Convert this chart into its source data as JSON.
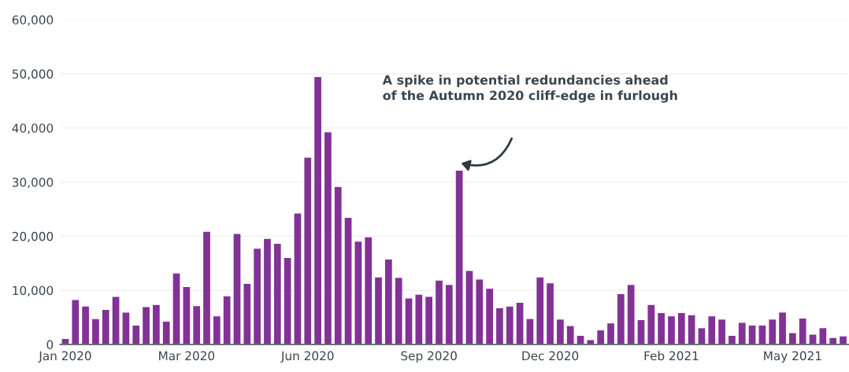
{
  "chart_data": {
    "type": "bar",
    "categories": [
      "Jan 2020",
      null,
      null,
      null,
      null,
      null,
      null,
      null,
      null,
      null,
      null,
      null,
      "Mar 2020",
      null,
      null,
      null,
      null,
      null,
      null,
      null,
      null,
      null,
      null,
      null,
      "Jun 2020",
      null,
      null,
      null,
      null,
      null,
      null,
      null,
      null,
      null,
      null,
      null,
      "Sep 2020",
      null,
      null,
      null,
      null,
      null,
      null,
      null,
      null,
      null,
      null,
      null,
      "Dec 2020",
      null,
      null,
      null,
      null,
      null,
      null,
      null,
      null,
      null,
      null,
      null,
      "Feb 2021",
      null,
      null,
      null,
      null,
      null,
      null,
      null,
      null,
      null,
      null,
      null,
      "May 2021",
      null,
      null,
      null,
      null,
      null
    ],
    "values": [
      1000,
      8200,
      7000,
      4700,
      6400,
      8800,
      5900,
      3500,
      6900,
      7300,
      4200,
      13100,
      10600,
      7100,
      20800,
      5200,
      8900,
      20400,
      11200,
      17700,
      19500,
      18600,
      16000,
      24200,
      34500,
      49400,
      39200,
      29100,
      23400,
      19000,
      19800,
      12400,
      15700,
      12300,
      8500,
      9200,
      8800,
      11800,
      11000,
      32100,
      13600,
      12000,
      10300,
      6700,
      7000,
      7700,
      4700,
      12400,
      11300,
      4600,
      3400,
      1600,
      800,
      2600,
      3900,
      9300,
      11000,
      4500,
      7300,
      5800,
      5200,
      5800,
      5400,
      3000,
      5200,
      4600,
      1600,
      4000,
      3500,
      3500,
      4600,
      5900,
      2100,
      4800,
      1800,
      3000,
      1200,
      1500
    ],
    "color": "#823296",
    "ylim": [
      0,
      60000
    ],
    "yticks": [
      0,
      {
        "value": 10000,
        "label": "10,000"
      },
      {
        "value": 20000,
        "label": "20,000"
      },
      {
        "value": 30000,
        "label": "30,000"
      },
      {
        "value": 40000,
        "label": "40,000"
      },
      {
        "value": 50000,
        "label": "50,000"
      },
      {
        "value": 60000,
        "label": "60,000"
      }
    ],
    "grid": "y",
    "annotations": [
      "A spike in potential redundancies ahead\nof the Autumn 2020 cliff-edge in furlough"
    ]
  }
}
